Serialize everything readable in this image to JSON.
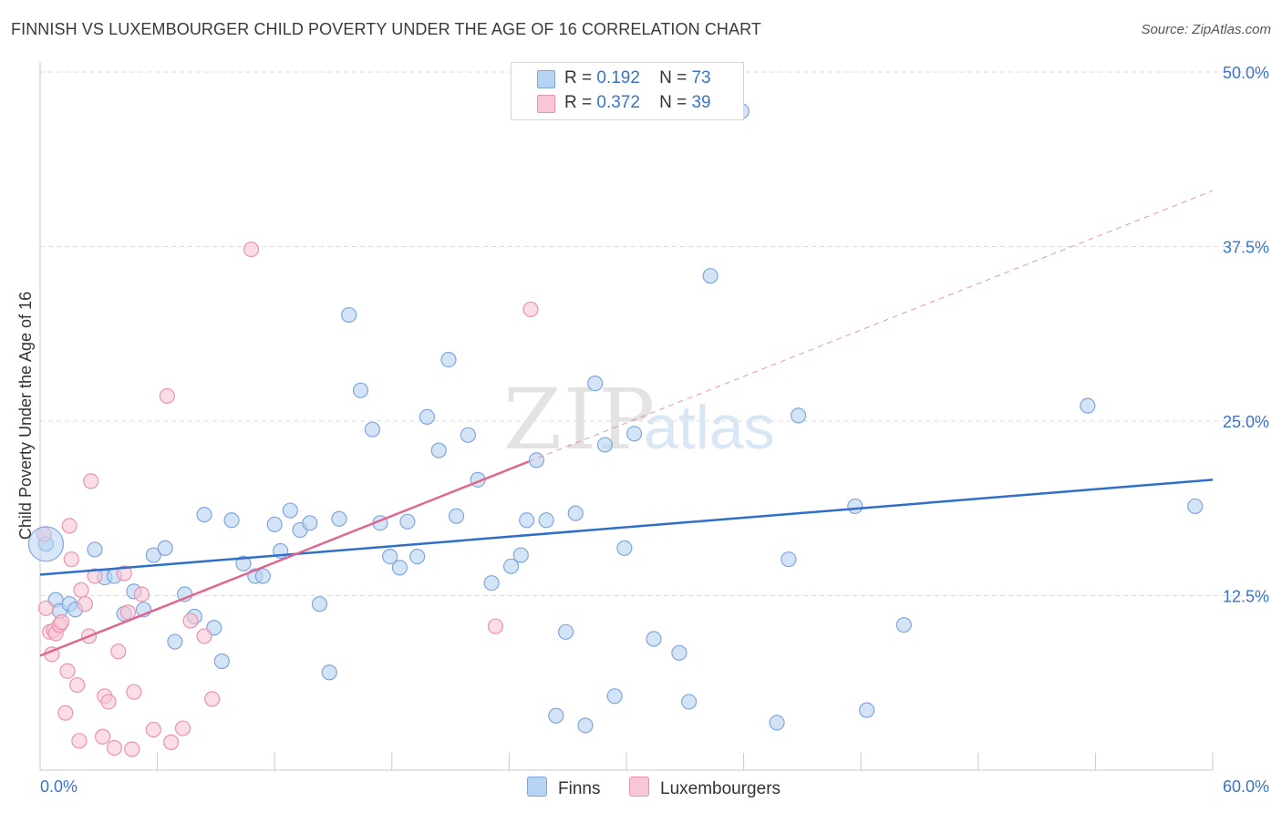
{
  "header": {
    "title": "FINNISH VS LUXEMBOURGER CHILD POVERTY UNDER THE AGE OF 16 CORRELATION CHART",
    "source": "Source: ZipAtlas.com"
  },
  "legend": {
    "finns": {
      "r_label": "R =",
      "r_value": "0.192",
      "n_label": "N =",
      "n_value": "73"
    },
    "luxembourgers": {
      "r_label": "R =",
      "r_value": "0.372",
      "n_label": "N =",
      "n_value": "39"
    }
  },
  "bottom_legend": {
    "finns": "Finns",
    "luxembourgers": "Luxembourgers"
  },
  "watermark": {
    "zip": "ZIP",
    "atlas": "atlas"
  },
  "colors": {
    "finns_fill": "#b8d2f2",
    "finns_stroke": "#7fa6dc",
    "finns_line": "#2f6fc9",
    "lux_fill": "#f8c6d5",
    "lux_stroke": "#ea93ae",
    "lux_line": "#e06690",
    "tick_label": "#3a73c9",
    "grid": "#dddddd"
  },
  "chart_data": {
    "type": "scatter",
    "title": "FINNISH VS LUXEMBOURGER CHILD POVERTY UNDER THE AGE OF 16 CORRELATION CHART",
    "xlabel": "",
    "ylabel": "Child Poverty Under the Age of 16",
    "xlim": [
      0,
      60
    ],
    "ylim": [
      0,
      50
    ],
    "x_tick_labels": [
      "0.0%",
      "60.0%"
    ],
    "y_ticks": [
      12.5,
      25.0,
      37.5,
      50.0
    ],
    "y_tick_labels": [
      "12.5%",
      "25.0%",
      "37.5%",
      "50.0%"
    ],
    "grid": "horizontal dashed",
    "legend_position": "top-center",
    "series": [
      {
        "name": "Finns",
        "points": [
          [
            0.3,
            16.2
          ],
          [
            0.8,
            12.2
          ],
          [
            1.0,
            11.4
          ],
          [
            1.5,
            11.9
          ],
          [
            1.8,
            11.5
          ],
          [
            2.8,
            15.8
          ],
          [
            3.3,
            13.8
          ],
          [
            3.8,
            13.9
          ],
          [
            4.3,
            11.2
          ],
          [
            4.8,
            12.8
          ],
          [
            5.3,
            11.5
          ],
          [
            5.8,
            15.4
          ],
          [
            6.4,
            15.9
          ],
          [
            6.9,
            9.2
          ],
          [
            7.4,
            12.6
          ],
          [
            7.9,
            11.0
          ],
          [
            8.4,
            18.3
          ],
          [
            8.9,
            10.2
          ],
          [
            9.3,
            7.8
          ],
          [
            9.8,
            17.9
          ],
          [
            10.4,
            14.8
          ],
          [
            11.0,
            13.9
          ],
          [
            11.4,
            13.9
          ],
          [
            12.0,
            17.6
          ],
          [
            12.3,
            15.7
          ],
          [
            12.8,
            18.6
          ],
          [
            13.3,
            17.2
          ],
          [
            13.8,
            17.7
          ],
          [
            14.3,
            11.9
          ],
          [
            14.8,
            7.0
          ],
          [
            15.3,
            18.0
          ],
          [
            15.8,
            32.6
          ],
          [
            16.4,
            27.2
          ],
          [
            17.0,
            24.4
          ],
          [
            17.4,
            17.7
          ],
          [
            17.9,
            15.3
          ],
          [
            18.4,
            14.5
          ],
          [
            18.8,
            17.8
          ],
          [
            19.3,
            15.3
          ],
          [
            19.8,
            25.3
          ],
          [
            20.4,
            22.9
          ],
          [
            20.9,
            29.4
          ],
          [
            21.3,
            18.2
          ],
          [
            21.9,
            24.0
          ],
          [
            22.4,
            20.8
          ],
          [
            23.1,
            13.4
          ],
          [
            24.1,
            14.6
          ],
          [
            24.6,
            15.4
          ],
          [
            24.9,
            17.9
          ],
          [
            25.4,
            22.2
          ],
          [
            25.9,
            17.9
          ],
          [
            26.4,
            3.9
          ],
          [
            26.9,
            9.9
          ],
          [
            27.4,
            18.4
          ],
          [
            27.9,
            3.2
          ],
          [
            28.4,
            27.7
          ],
          [
            28.9,
            23.3
          ],
          [
            29.4,
            5.3
          ],
          [
            29.9,
            15.9
          ],
          [
            30.4,
            24.1
          ],
          [
            31.4,
            9.4
          ],
          [
            32.7,
            8.4
          ],
          [
            33.2,
            4.9
          ],
          [
            34.3,
            35.4
          ],
          [
            35.9,
            47.2
          ],
          [
            37.7,
            3.4
          ],
          [
            38.3,
            15.1
          ],
          [
            38.8,
            25.4
          ],
          [
            41.7,
            18.9
          ],
          [
            42.3,
            4.3
          ],
          [
            44.2,
            10.4
          ],
          [
            53.6,
            26.1
          ],
          [
            59.1,
            18.9
          ]
        ]
      },
      {
        "name": "Luxembourgers",
        "points": [
          [
            0.2,
            16.9
          ],
          [
            0.3,
            11.6
          ],
          [
            0.5,
            9.9
          ],
          [
            0.6,
            8.3
          ],
          [
            0.7,
            10.0
          ],
          [
            0.8,
            9.8
          ],
          [
            1.0,
            10.4
          ],
          [
            1.1,
            10.6
          ],
          [
            1.3,
            4.1
          ],
          [
            1.4,
            7.1
          ],
          [
            1.5,
            17.5
          ],
          [
            1.6,
            15.1
          ],
          [
            1.9,
            6.1
          ],
          [
            2.0,
            2.1
          ],
          [
            2.1,
            12.9
          ],
          [
            2.3,
            11.9
          ],
          [
            2.5,
            9.6
          ],
          [
            2.6,
            20.7
          ],
          [
            2.8,
            13.9
          ],
          [
            3.2,
            2.4
          ],
          [
            3.3,
            5.3
          ],
          [
            3.5,
            4.9
          ],
          [
            3.8,
            1.6
          ],
          [
            4.0,
            8.5
          ],
          [
            4.3,
            14.1
          ],
          [
            4.5,
            11.3
          ],
          [
            4.7,
            1.5
          ],
          [
            4.8,
            5.6
          ],
          [
            5.2,
            12.6
          ],
          [
            5.8,
            2.9
          ],
          [
            6.5,
            26.8
          ],
          [
            6.7,
            2.0
          ],
          [
            7.3,
            3.0
          ],
          [
            7.7,
            10.7
          ],
          [
            8.4,
            9.6
          ],
          [
            8.8,
            5.1
          ],
          [
            10.8,
            37.3
          ],
          [
            23.3,
            10.3
          ],
          [
            25.1,
            33.0
          ]
        ]
      }
    ],
    "trendlines": [
      {
        "series": "Finns",
        "from": [
          0,
          14.0
        ],
        "to": [
          60,
          20.8
        ],
        "style": "solid"
      },
      {
        "series": "Luxembourgers",
        "from": [
          0,
          8.2
        ],
        "to": [
          25.0,
          22.1
        ],
        "style": "solid"
      },
      {
        "series": "Luxembourgers",
        "from": [
          25.0,
          22.1
        ],
        "to": [
          60,
          41.5
        ],
        "style": "dashed"
      }
    ]
  }
}
